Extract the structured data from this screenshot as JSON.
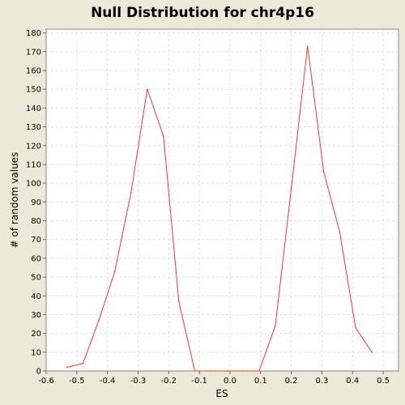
{
  "chart_data": {
    "type": "line",
    "title": "Null Distribution for chr4p16",
    "xlabel": "ES",
    "ylabel": "# of random values",
    "xlim": [
      -0.6,
      0.55
    ],
    "ylim": [
      0,
      182
    ],
    "xticks": [
      -0.6,
      -0.5,
      -0.4,
      -0.3,
      -0.2,
      -0.1,
      0.0,
      0.1,
      0.2,
      0.3,
      0.4,
      0.5
    ],
    "xtick_labels": [
      "-0.6",
      "-0.5",
      "-0.4",
      "-0.3",
      "-0.2",
      "-0.1",
      "0.0",
      "0.1",
      "0.2",
      "0.3",
      "0.4",
      "0.5"
    ],
    "yticks": [
      0,
      10,
      20,
      30,
      40,
      50,
      60,
      70,
      80,
      90,
      100,
      110,
      120,
      130,
      140,
      150,
      160,
      170,
      180
    ],
    "ytick_labels": [
      "0",
      "10",
      "20",
      "30",
      "40",
      "50",
      "60",
      "70",
      "80",
      "90",
      "100",
      "110",
      "120",
      "130",
      "140",
      "150",
      "160",
      "170",
      "180"
    ],
    "grid": true,
    "series": [
      {
        "color": "#ff3333",
        "x": [
          -0.532,
          -0.48,
          -0.428,
          -0.376,
          -0.323,
          -0.27,
          -0.217,
          -0.167,
          -0.115,
          -0.063,
          -0.01,
          0.042,
          0.095,
          0.148,
          0.2,
          0.253,
          0.306,
          0.358,
          0.41,
          0.463
        ],
        "y": [
          2,
          4,
          27,
          53,
          95,
          150,
          125,
          37,
          0,
          0,
          0,
          0,
          0,
          24,
          97,
          173,
          106,
          74,
          23,
          10
        ]
      }
    ]
  }
}
